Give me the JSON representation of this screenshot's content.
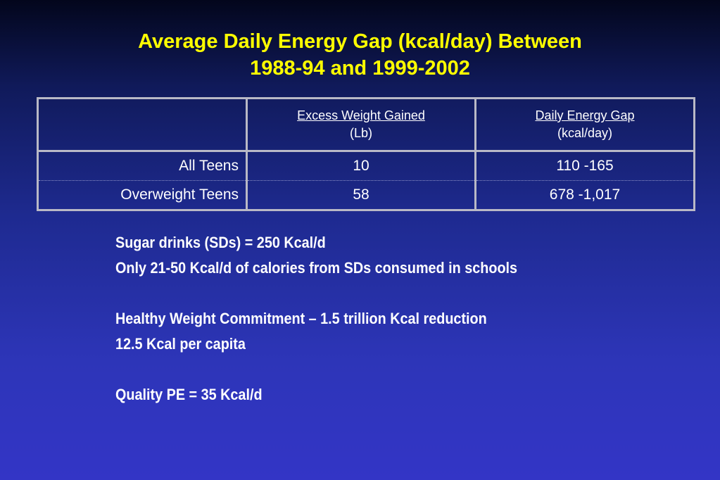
{
  "title": {
    "line1": "Average Daily Energy Gap (kcal/day) Between",
    "line2": "1988-94 and 1999-2002"
  },
  "table": {
    "headers": [
      {
        "main": "Excess Weight Gained",
        "sub": "(Lb)"
      },
      {
        "main": "Daily Energy Gap",
        "sub": "(kcal/day)"
      }
    ],
    "rows": [
      {
        "label": "All Teens",
        "weight": "10",
        "gap": "110 -165"
      },
      {
        "label": "Overweight Teens",
        "weight": "58",
        "gap": "678 -1,017"
      }
    ]
  },
  "notes": [
    "Sugar drinks (SDs) = 250 Kcal/d",
    "Only 21-50 Kcal/d of calories from SDs consumed in schools",
    "Healthy Weight Commitment – 1.5 trillion Kcal reduction",
    "12.5 Kcal per capita",
    "Quality PE = 35 Kcal/d"
  ],
  "colors": {
    "title": "#ffff00",
    "text": "#ffffff",
    "border": "#b9b9c6",
    "background_top": "#03061c",
    "background_bottom": "#3335c6"
  }
}
